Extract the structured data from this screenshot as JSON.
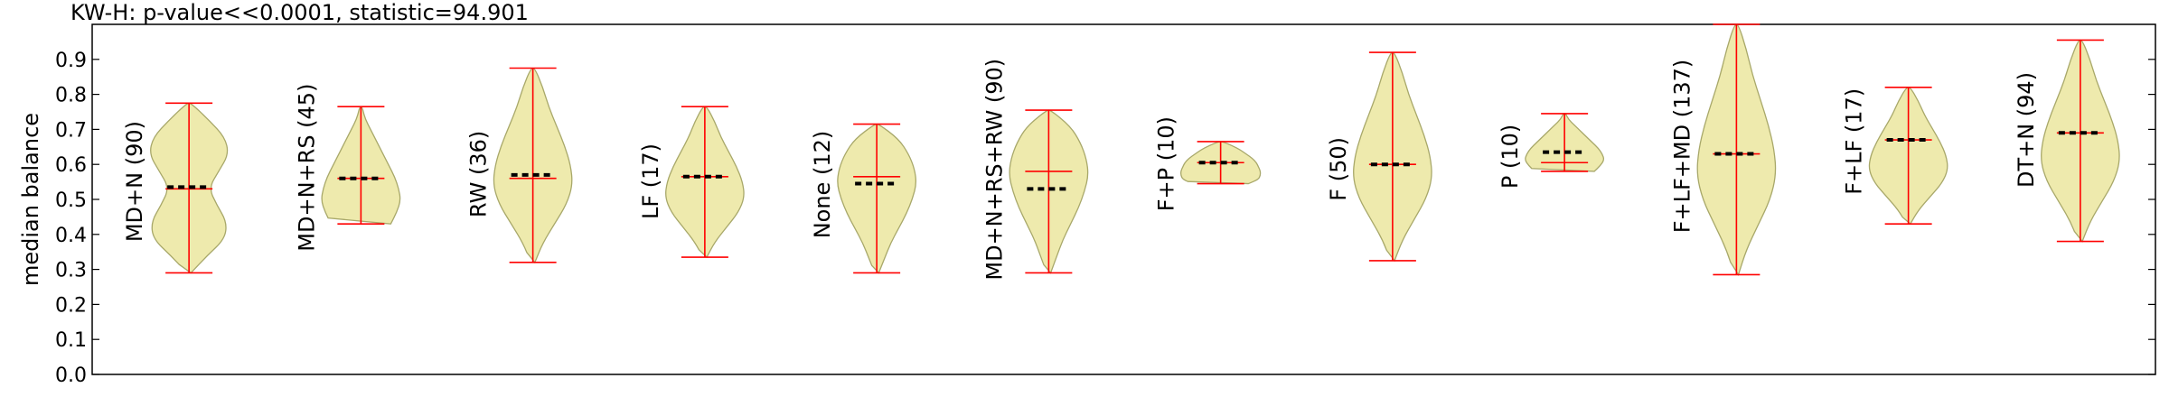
{
  "chart_data": {
    "type": "violin",
    "title": "KW-H: p-value<<0.0001, statistic=94.901",
    "xlabel": "",
    "ylabel": "median balance",
    "ylim": [
      0.0,
      1.0
    ],
    "yticks": [
      "0.0",
      "0.1",
      "0.2",
      "0.3",
      "0.4",
      "0.5",
      "0.6",
      "0.7",
      "0.8",
      "0.9"
    ],
    "grid": false,
    "colors": {
      "fill": "#eeeaad",
      "fill_edge": "#a8a86a",
      "whisker": "#ff0000",
      "median_marker": "#000000"
    },
    "categories": [
      {
        "label": "MD+N (90)",
        "min": 0.29,
        "max": 0.775,
        "mean": 0.53,
        "median": 0.535,
        "shape": "bimodal"
      },
      {
        "label": "MD+N+RS (45)",
        "min": 0.43,
        "max": 0.765,
        "mean": 0.56,
        "median": 0.56,
        "shape": "bottom-heavy"
      },
      {
        "label": "RW (36)",
        "min": 0.32,
        "max": 0.875,
        "mean": 0.56,
        "median": 0.57,
        "shape": "unimodal"
      },
      {
        "label": "LF (17)",
        "min": 0.335,
        "max": 0.765,
        "mean": 0.565,
        "median": 0.565,
        "shape": "unimodal"
      },
      {
        "label": "None (12)",
        "min": 0.29,
        "max": 0.715,
        "mean": 0.565,
        "median": 0.545,
        "shape": "top-heavy"
      },
      {
        "label": "MD+N+RS+RW (90)",
        "min": 0.29,
        "max": 0.755,
        "mean": 0.58,
        "median": 0.53,
        "shape": "top-heavy"
      },
      {
        "label": "F+P (10)",
        "min": 0.545,
        "max": 0.665,
        "mean": 0.605,
        "median": 0.605,
        "shape": "compact"
      },
      {
        "label": "F (50)",
        "min": 0.325,
        "max": 0.92,
        "mean": 0.6,
        "median": 0.6,
        "shape": "unimodal"
      },
      {
        "label": "P (10)",
        "min": 0.58,
        "max": 0.745,
        "mean": 0.605,
        "median": 0.635,
        "shape": "bottom-heavy"
      },
      {
        "label": "F+LF+MD (137)",
        "min": 0.285,
        "max": 1.0,
        "mean": 0.63,
        "median": 0.63,
        "shape": "unimodal"
      },
      {
        "label": "F+LF (17)",
        "min": 0.43,
        "max": 0.82,
        "mean": 0.67,
        "median": 0.67,
        "shape": "unimodal"
      },
      {
        "label": "DT+N (94)",
        "min": 0.38,
        "max": 0.955,
        "mean": 0.69,
        "median": 0.69,
        "shape": "unimodal"
      }
    ]
  }
}
